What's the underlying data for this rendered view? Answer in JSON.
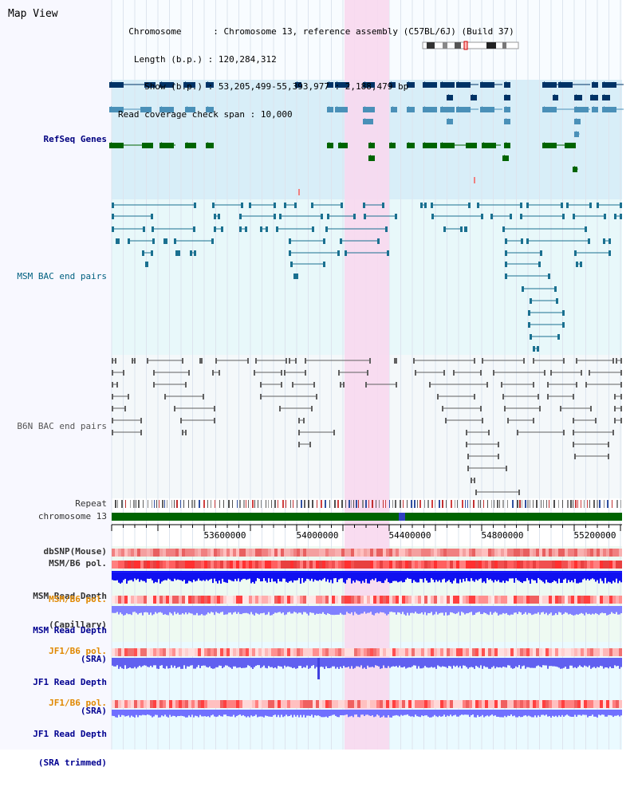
{
  "app": {
    "title": "Map View"
  },
  "header": {
    "chromosome_label": "Chromosome",
    "chromosome_value": "Chromosome 13, reference assembly (C57BL/6J) (Build 37)",
    "length_label": "Length (b.p.)",
    "length_value": "120,284,312",
    "show_label": "Show (b.p.)",
    "show_value": "53,205,499-55,393,977 : 2,188,479 bp",
    "coverage_label": "Read coverage check span",
    "coverage_value": "10,000"
  },
  "tracks": {
    "refseq": "RefSeq Genes",
    "msm_bac": "MSM BAC end pairs",
    "b6n_bac": "B6N BAC end pairs",
    "repeat": "Repeat",
    "chromosome": "chromosome 13",
    "dbsnp": "dbSNP(Mouse)",
    "msm_b6_pol_1": "MSM/B6 pol.",
    "msm_read_depth_cap_1": "MSM Read Depth",
    "msm_read_depth_cap_2": "(Capillary)",
    "msm_b6_pol_2": "MSM/B6 pol.",
    "msm_read_depth_sra_1": "MSM Read Depth",
    "msm_read_depth_sra_2": "(SRA)",
    "jf1_b6_pol_1": "JF1/B6 pol.",
    "jf1_read_depth_sra_1": "JF1 Read Depth",
    "jf1_read_depth_sra_2": "(SRA)",
    "jf1_b6_pol_2": "JF1/B6 pol.",
    "jf1_read_depth_trim_1": "JF1 Read Depth",
    "jf1_read_depth_trim_2": "(SRA trimmed)"
  },
  "axis": {
    "ticks": [
      "53600000",
      "54000000",
      "54400000",
      "54800000",
      "55200000"
    ]
  },
  "colors": {
    "refseq_bg": "#d8eef8",
    "msm_bg": "#e8f8fa",
    "b6n_bg": "#f4f8fa",
    "highlight": "#f8d8ee",
    "ref_dark": "#003366",
    "ref_light": "#4a90b8",
    "ref_green": "#006400",
    "msm_line": "#1a7090",
    "b6n_line": "#606060",
    "chrom_green": "#006400"
  }
}
